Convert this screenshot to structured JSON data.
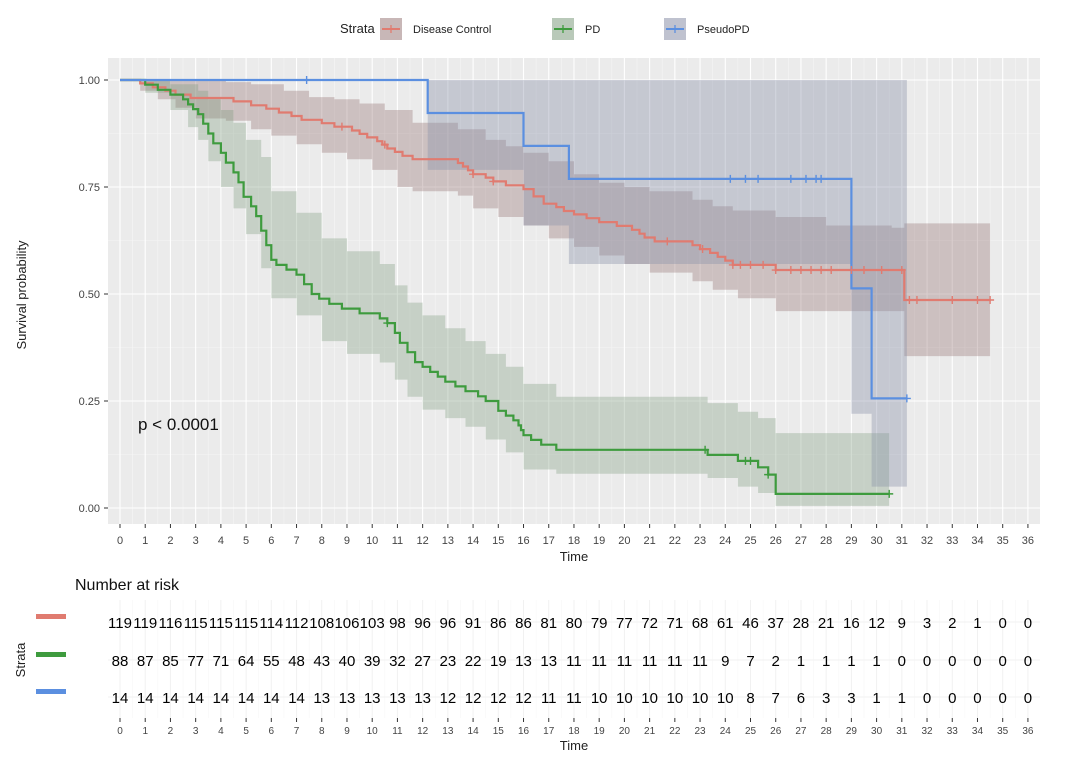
{
  "chart_data": {
    "type": "line",
    "subtype": "kaplan-meier",
    "xlabel": "Time",
    "ylabel": "Survival probability",
    "xlim": [
      0,
      36
    ],
    "ylim": [
      0,
      1
    ],
    "x_ticks": [
      0,
      1,
      2,
      3,
      4,
      5,
      6,
      7,
      8,
      9,
      10,
      11,
      12,
      13,
      14,
      15,
      16,
      17,
      18,
      19,
      20,
      21,
      22,
      23,
      24,
      25,
      26,
      27,
      28,
      29,
      30,
      31,
      32,
      33,
      34,
      35,
      36
    ],
    "y_ticks": [
      0,
      0.25,
      0.5,
      0.75,
      1.0
    ],
    "y_tick_labels": [
      "0.00",
      "0.25",
      "0.50",
      "0.75",
      "1.00"
    ],
    "grid": true,
    "annotation": "p < 0.0001",
    "legend": {
      "title": "Strata",
      "placement": "top",
      "entries": [
        "Disease Control",
        "PD",
        "PseudoPD"
      ]
    },
    "series": [
      {
        "name": "Disease Control",
        "color": "#E07B70",
        "steps": [
          [
            0,
            1.0
          ],
          [
            0.8,
            0.992
          ],
          [
            1.3,
            0.983
          ],
          [
            1.8,
            0.975
          ],
          [
            2.2,
            0.966
          ],
          [
            2.8,
            0.958
          ],
          [
            4.2,
            0.958
          ],
          [
            4.5,
            0.95
          ],
          [
            5.2,
            0.941
          ],
          [
            5.8,
            0.933
          ],
          [
            6.3,
            0.924
          ],
          [
            6.8,
            0.916
          ],
          [
            7.2,
            0.907
          ],
          [
            8.0,
            0.899
          ],
          [
            8.5,
            0.891
          ],
          [
            9.2,
            0.882
          ],
          [
            9.5,
            0.874
          ],
          [
            9.8,
            0.866
          ],
          [
            10.2,
            0.857
          ],
          [
            10.4,
            0.849
          ],
          [
            10.6,
            0.84
          ],
          [
            10.9,
            0.832
          ],
          [
            11.2,
            0.823
          ],
          [
            11.6,
            0.815
          ],
          [
            13.4,
            0.806
          ],
          [
            13.6,
            0.798
          ],
          [
            13.8,
            0.789
          ],
          [
            14.0,
            0.78
          ],
          [
            14.5,
            0.772
          ],
          [
            14.8,
            0.763
          ],
          [
            15.3,
            0.754
          ],
          [
            16.0,
            0.745
          ],
          [
            16.4,
            0.728
          ],
          [
            16.8,
            0.711
          ],
          [
            17.3,
            0.703
          ],
          [
            17.6,
            0.694
          ],
          [
            18.0,
            0.686
          ],
          [
            18.5,
            0.677
          ],
          [
            19.0,
            0.668
          ],
          [
            19.7,
            0.659
          ],
          [
            20.3,
            0.65
          ],
          [
            20.6,
            0.641
          ],
          [
            20.8,
            0.632
          ],
          [
            21.2,
            0.623
          ],
          [
            22.7,
            0.614
          ],
          [
            23.0,
            0.605
          ],
          [
            23.4,
            0.596
          ],
          [
            23.7,
            0.587
          ],
          [
            24.0,
            0.578
          ],
          [
            24.3,
            0.568
          ],
          [
            26.0,
            0.556
          ],
          [
            30.6,
            0.556
          ],
          [
            31.1,
            0.486
          ],
          [
            34.5,
            0.486
          ]
        ],
        "censor": [
          8.8,
          10.5,
          14.0,
          14.8,
          21.7,
          23.1,
          24.3,
          24.6,
          25.0,
          25.5,
          26.0,
          26.6,
          27.0,
          27.4,
          27.8,
          28.2,
          29.0,
          29.5,
          30.2,
          31.0,
          31.3,
          31.6,
          33.0,
          34.0,
          34.5
        ],
        "ci_lower": [
          [
            0,
            1.0
          ],
          [
            0.8,
            0.975
          ],
          [
            1.5,
            0.955
          ],
          [
            2.2,
            0.935
          ],
          [
            3.0,
            0.91
          ],
          [
            4.2,
            0.905
          ],
          [
            5.2,
            0.885
          ],
          [
            6.0,
            0.87
          ],
          [
            7.0,
            0.85
          ],
          [
            8.0,
            0.83
          ],
          [
            9.0,
            0.815
          ],
          [
            10.0,
            0.79
          ],
          [
            11.0,
            0.75
          ],
          [
            11.6,
            0.74
          ],
          [
            13.4,
            0.73
          ],
          [
            14.0,
            0.7
          ],
          [
            15.0,
            0.68
          ],
          [
            16.0,
            0.66
          ],
          [
            17.0,
            0.63
          ],
          [
            18.0,
            0.61
          ],
          [
            19.0,
            0.59
          ],
          [
            20.0,
            0.57
          ],
          [
            21.0,
            0.55
          ],
          [
            22.7,
            0.53
          ],
          [
            23.5,
            0.51
          ],
          [
            24.5,
            0.49
          ],
          [
            26.0,
            0.46
          ],
          [
            30.6,
            0.46
          ],
          [
            31.1,
            0.355
          ],
          [
            34.5,
            0.355
          ]
        ],
        "ci_upper": [
          [
            0,
            1.0
          ],
          [
            2.8,
            1.0
          ],
          [
            4.2,
            0.995
          ],
          [
            5.2,
            0.99
          ],
          [
            6.5,
            0.975
          ],
          [
            7.5,
            0.96
          ],
          [
            8.5,
            0.955
          ],
          [
            9.5,
            0.945
          ],
          [
            10.5,
            0.93
          ],
          [
            11.6,
            0.9
          ],
          [
            13.4,
            0.885
          ],
          [
            14.5,
            0.86
          ],
          [
            15.3,
            0.845
          ],
          [
            16.0,
            0.83
          ],
          [
            17.0,
            0.81
          ],
          [
            18.0,
            0.78
          ],
          [
            19.0,
            0.76
          ],
          [
            20.0,
            0.75
          ],
          [
            21.0,
            0.74
          ],
          [
            22.7,
            0.72
          ],
          [
            23.5,
            0.705
          ],
          [
            24.3,
            0.695
          ],
          [
            26.0,
            0.68
          ],
          [
            28.0,
            0.66
          ],
          [
            30.6,
            0.655
          ],
          [
            31.1,
            0.665
          ],
          [
            34.5,
            0.665
          ]
        ]
      },
      {
        "name": "PD",
        "color": "#3E9B3E",
        "steps": [
          [
            0,
            1.0
          ],
          [
            1.0,
            0.989
          ],
          [
            1.5,
            0.977
          ],
          [
            2.0,
            0.966
          ],
          [
            2.5,
            0.955
          ],
          [
            2.7,
            0.943
          ],
          [
            2.9,
            0.932
          ],
          [
            3.1,
            0.92
          ],
          [
            3.3,
            0.898
          ],
          [
            3.5,
            0.875
          ],
          [
            3.7,
            0.852
          ],
          [
            4.0,
            0.83
          ],
          [
            4.2,
            0.807
          ],
          [
            4.5,
            0.784
          ],
          [
            4.7,
            0.761
          ],
          [
            4.9,
            0.727
          ],
          [
            5.2,
            0.705
          ],
          [
            5.4,
            0.682
          ],
          [
            5.6,
            0.648
          ],
          [
            5.8,
            0.614
          ],
          [
            6.0,
            0.58
          ],
          [
            6.2,
            0.568
          ],
          [
            6.6,
            0.557
          ],
          [
            7.0,
            0.545
          ],
          [
            7.3,
            0.523
          ],
          [
            7.6,
            0.5
          ],
          [
            7.9,
            0.489
          ],
          [
            8.3,
            0.477
          ],
          [
            8.8,
            0.466
          ],
          [
            9.5,
            0.455
          ],
          [
            10.3,
            0.443
          ],
          [
            10.6,
            0.432
          ],
          [
            10.9,
            0.409
          ],
          [
            11.1,
            0.386
          ],
          [
            11.4,
            0.364
          ],
          [
            11.7,
            0.341
          ],
          [
            12.0,
            0.33
          ],
          [
            12.3,
            0.318
          ],
          [
            12.6,
            0.307
          ],
          [
            12.9,
            0.295
          ],
          [
            13.3,
            0.284
          ],
          [
            13.7,
            0.273
          ],
          [
            14.2,
            0.261
          ],
          [
            14.5,
            0.25
          ],
          [
            15.0,
            0.227
          ],
          [
            15.3,
            0.216
          ],
          [
            15.6,
            0.205
          ],
          [
            15.8,
            0.193
          ],
          [
            15.9,
            0.182
          ],
          [
            16.0,
            0.17
          ],
          [
            16.3,
            0.159
          ],
          [
            16.7,
            0.148
          ],
          [
            17.3,
            0.136
          ],
          [
            23.3,
            0.124
          ],
          [
            24.5,
            0.11
          ],
          [
            25.3,
            0.095
          ],
          [
            25.7,
            0.078
          ],
          [
            26.0,
            0.033
          ],
          [
            30.5,
            0.033
          ]
        ],
        "censor": [
          10.6,
          23.2,
          24.8,
          25.0,
          25.7,
          30.5
        ],
        "ci_lower": [
          [
            0,
            1.0
          ],
          [
            1.0,
            0.97
          ],
          [
            2.0,
            0.93
          ],
          [
            2.7,
            0.89
          ],
          [
            3.1,
            0.86
          ],
          [
            3.5,
            0.81
          ],
          [
            4.0,
            0.75
          ],
          [
            4.5,
            0.7
          ],
          [
            5.0,
            0.64
          ],
          [
            5.6,
            0.56
          ],
          [
            6.0,
            0.49
          ],
          [
            7.0,
            0.45
          ],
          [
            8.0,
            0.39
          ],
          [
            9.0,
            0.36
          ],
          [
            10.3,
            0.34
          ],
          [
            10.9,
            0.3
          ],
          [
            11.4,
            0.26
          ],
          [
            12.0,
            0.23
          ],
          [
            12.9,
            0.21
          ],
          [
            13.7,
            0.19
          ],
          [
            14.5,
            0.16
          ],
          [
            15.3,
            0.13
          ],
          [
            16.0,
            0.09
          ],
          [
            17.3,
            0.08
          ],
          [
            23.3,
            0.07
          ],
          [
            24.5,
            0.05
          ],
          [
            25.3,
            0.035
          ],
          [
            26.0,
            0.005
          ],
          [
            30.5,
            0.005
          ]
        ],
        "ci_upper": [
          [
            0,
            1.0
          ],
          [
            2.0,
            0.99
          ],
          [
            2.7,
            0.99
          ],
          [
            3.1,
            0.975
          ],
          [
            3.5,
            0.955
          ],
          [
            4.0,
            0.93
          ],
          [
            4.5,
            0.9
          ],
          [
            5.0,
            0.86
          ],
          [
            5.6,
            0.82
          ],
          [
            6.0,
            0.74
          ],
          [
            7.0,
            0.69
          ],
          [
            8.0,
            0.63
          ],
          [
            9.0,
            0.6
          ],
          [
            10.3,
            0.57
          ],
          [
            10.9,
            0.52
          ],
          [
            11.4,
            0.48
          ],
          [
            12.0,
            0.45
          ],
          [
            12.9,
            0.42
          ],
          [
            13.7,
            0.39
          ],
          [
            14.5,
            0.36
          ],
          [
            15.3,
            0.33
          ],
          [
            16.0,
            0.29
          ],
          [
            17.3,
            0.26
          ],
          [
            23.3,
            0.245
          ],
          [
            24.5,
            0.225
          ],
          [
            25.3,
            0.21
          ],
          [
            26.0,
            0.175
          ],
          [
            30.5,
            0.175
          ]
        ]
      },
      {
        "name": "PseudoPD",
        "color": "#5B8FE0",
        "steps": [
          [
            0,
            1.0
          ],
          [
            12.2,
            0.923
          ],
          [
            16.0,
            0.846
          ],
          [
            17.8,
            0.769
          ],
          [
            29.0,
            0.513
          ],
          [
            29.8,
            0.256
          ],
          [
            31.2,
            0.256
          ]
        ],
        "censor": [
          7.4,
          24.2,
          24.8,
          25.3,
          26.6,
          27.2,
          27.6,
          27.8,
          31.2
        ],
        "ci_lower": [
          [
            0,
            1.0
          ],
          [
            12.2,
            0.79
          ],
          [
            16.0,
            0.66
          ],
          [
            17.8,
            0.57
          ],
          [
            29.0,
            0.22
          ],
          [
            29.8,
            0.05
          ],
          [
            31.2,
            0.05
          ]
        ],
        "ci_upper": [
          [
            0,
            1.0
          ],
          [
            31.2,
            1.0
          ]
        ]
      }
    ],
    "risk_table": {
      "title": "Number at risk",
      "ylabel": "Strata",
      "xlabel": "Time",
      "rows": [
        {
          "name": "Disease Control",
          "color": "#E07B70",
          "values": [
            "119",
            "119",
            "116",
            "115",
            "115",
            "115",
            "114",
            "112",
            "108",
            "106",
            "103",
            "98",
            "96",
            "96",
            "91",
            "86",
            "86",
            "81",
            "80",
            "79",
            "77",
            "72",
            "71",
            "68",
            "61",
            "46",
            "37",
            "28",
            "21",
            "16",
            "12",
            "9",
            "3",
            "2",
            "1",
            "0",
            "0"
          ]
        },
        {
          "name": "PD",
          "color": "#3E9B3E",
          "values": [
            "88",
            "87",
            "85",
            "77",
            "71",
            "64",
            "55",
            "48",
            "43",
            "40",
            "39",
            "32",
            "27",
            "23",
            "22",
            "19",
            "13",
            "13",
            "11",
            "11",
            "11",
            "11",
            "11",
            "11",
            "9",
            "7",
            "2",
            "1",
            "1",
            "1",
            "1",
            "0",
            "0",
            "0",
            "0",
            "0",
            "0"
          ]
        },
        {
          "name": "PseudoPD",
          "color": "#5B8FE0",
          "values": [
            "14",
            "14",
            "14",
            "14",
            "14",
            "14",
            "14",
            "14",
            "13",
            "13",
            "13",
            "13",
            "13",
            "12",
            "12",
            "12",
            "12",
            "11",
            "11",
            "10",
            "10",
            "10",
            "10",
            "10",
            "10",
            "8",
            "7",
            "6",
            "3",
            "3",
            "1",
            "1",
            "0",
            "0",
            "0",
            "0",
            "0"
          ]
        }
      ]
    }
  }
}
